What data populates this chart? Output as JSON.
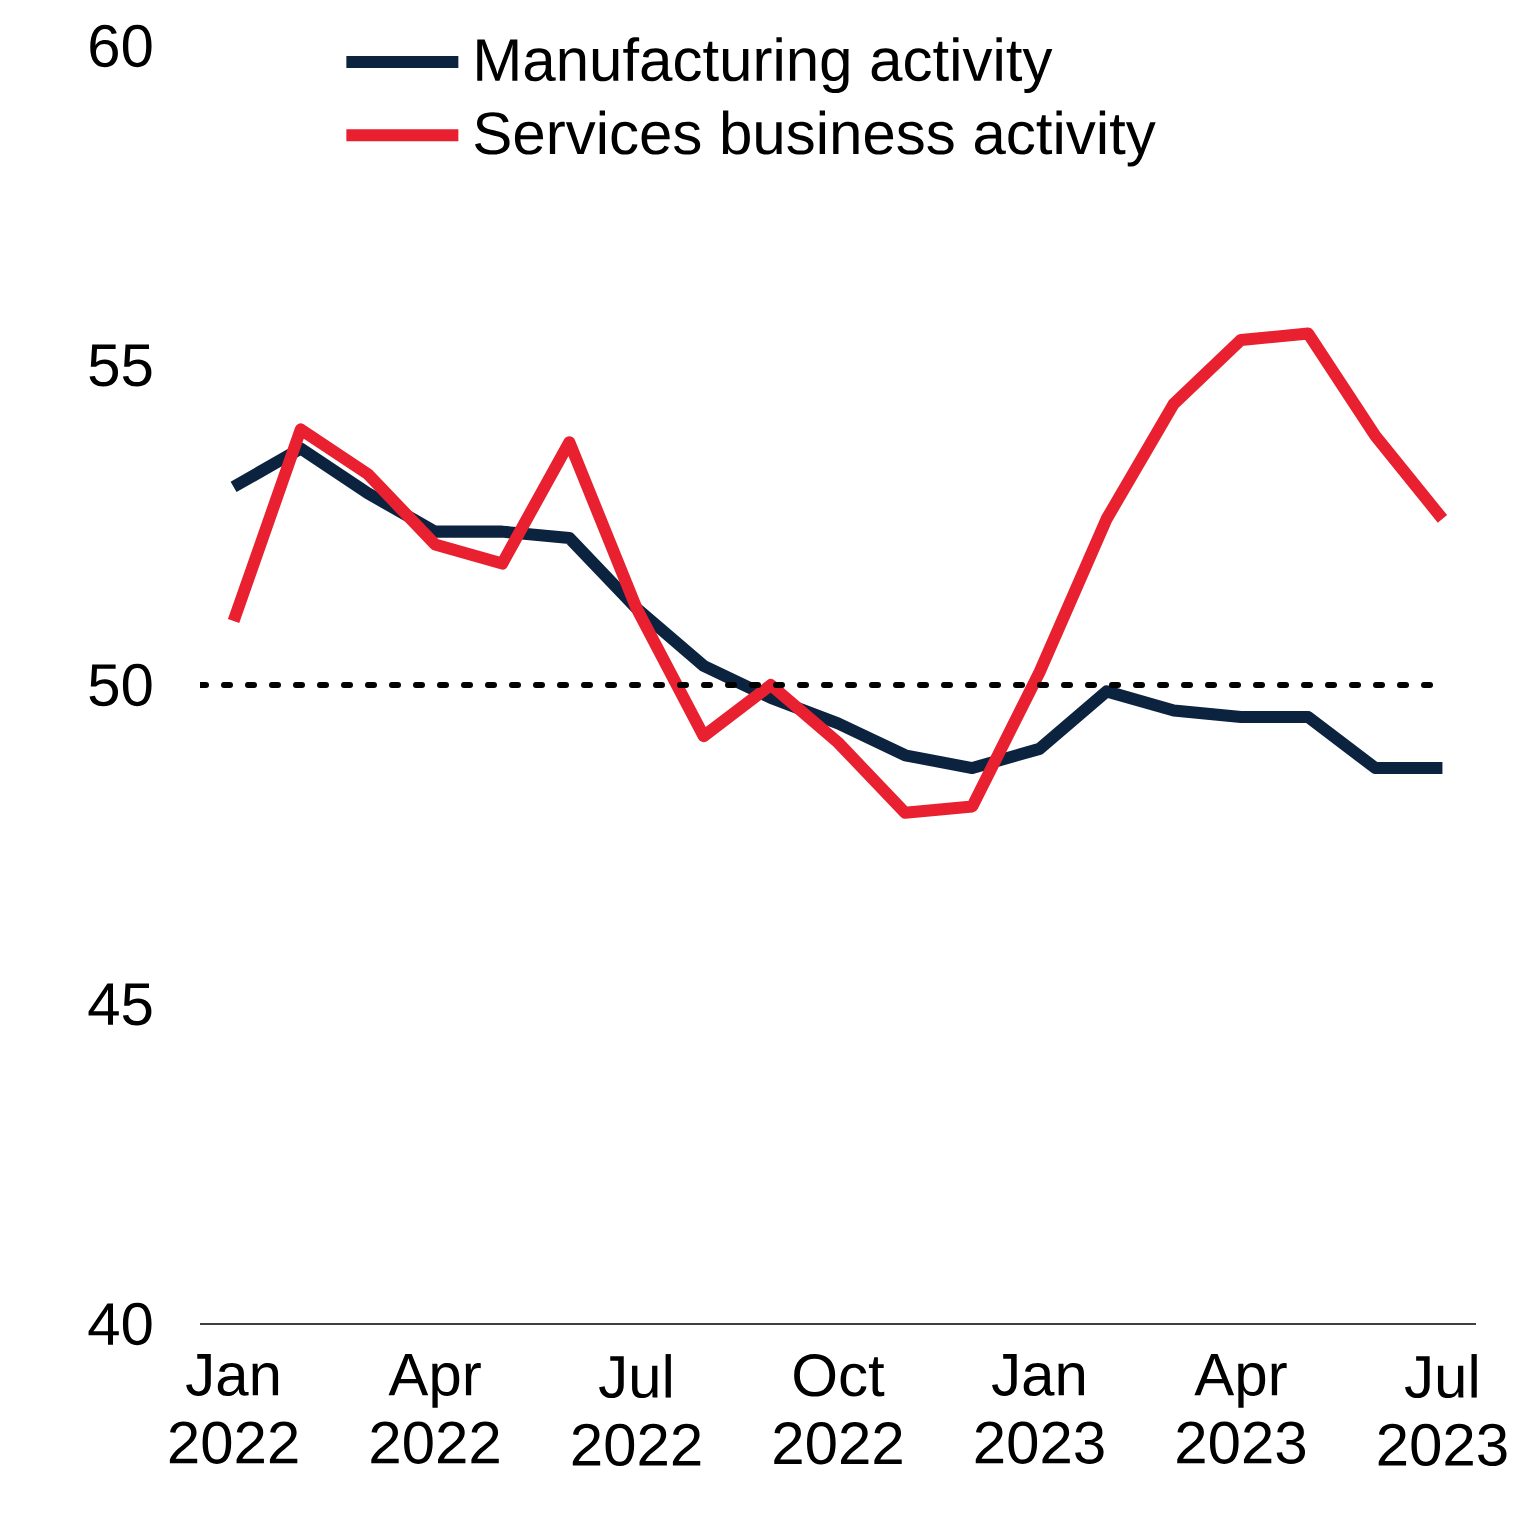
{
  "chart_data": {
    "type": "line",
    "categories": [
      "Jan 2022",
      null,
      null,
      "Apr 2022",
      null,
      null,
      "Jul 2022",
      null,
      null,
      "Oct 2022",
      null,
      null,
      "Jan 2023",
      null,
      null,
      "Apr 2023",
      null,
      null,
      "Jul 2023"
    ],
    "series": [
      {
        "name": "Manufacturing activity",
        "color": "#0c2340",
        "values": [
          53.1,
          53.7,
          53.0,
          52.4,
          52.4,
          52.3,
          51.2,
          50.3,
          49.8,
          49.4,
          48.9,
          48.7,
          49.0,
          49.9,
          49.6,
          49.5,
          49.5,
          48.7,
          48.7
        ]
      },
      {
        "name": "Services business activity",
        "color": "#e8202f",
        "values": [
          51.0,
          54.0,
          53.3,
          52.2,
          51.9,
          53.8,
          51.2,
          49.2,
          50.0,
          49.1,
          48.0,
          48.1,
          50.2,
          52.6,
          54.4,
          55.4,
          55.5,
          53.9,
          52.6
        ]
      }
    ],
    "ylim": [
      40,
      60
    ],
    "yticks": [
      40,
      45,
      50,
      55,
      60
    ],
    "ref_lines": [
      {
        "axis": "y",
        "value": 50,
        "color": "#000000",
        "line_style": "dotted"
      }
    ],
    "grid": false,
    "legend": "top left",
    "marker": "none",
    "line_style": "solid"
  }
}
